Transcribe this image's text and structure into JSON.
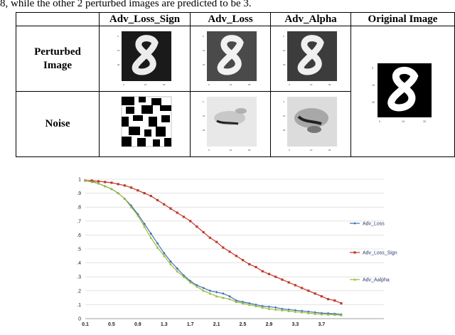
{
  "caption_fragment": "8, while the other 2 perturbed images are predicted to be 3.",
  "table": {
    "headers": [
      "",
      "Adv_Loss_Sign",
      "Adv_Loss",
      "Adv_Alpha",
      "Original Image"
    ],
    "rows": [
      {
        "label_line1": "Perturbed",
        "label_line2": "Image"
      },
      {
        "label_line1": "Noise",
        "label_line2": ""
      }
    ]
  },
  "chart_data": {
    "type": "line",
    "x_ticks": [
      "0.1",
      "0.5",
      "0.9",
      "1.3",
      "1.7",
      "2.1",
      "2.5",
      "2.9",
      "3.3",
      "3.7"
    ],
    "y_ticks": [
      "0",
      "0.1",
      "0.2",
      "0.3",
      "0.4",
      "0.5",
      "0.6",
      "0.7",
      "0.8",
      "0.9",
      "1"
    ],
    "xlim": [
      0.1,
      4.0
    ],
    "ylim": [
      0,
      1
    ],
    "grid": "horizontal",
    "legend_position": "right",
    "series": [
      {
        "name": "Adv_Loss",
        "color": "#3b6fb6",
        "marker": "diamond",
        "x": [
          0.1,
          0.2,
          0.3,
          0.4,
          0.5,
          0.6,
          0.7,
          0.8,
          0.9,
          1.0,
          1.1,
          1.2,
          1.3,
          1.4,
          1.5,
          1.6,
          1.7,
          1.8,
          1.9,
          2.0,
          2.1,
          2.2,
          2.3,
          2.4,
          2.5,
          2.6,
          2.7,
          2.8,
          2.9,
          3.0,
          3.1,
          3.2,
          3.3,
          3.4,
          3.5,
          3.6,
          3.7,
          3.8,
          3.9,
          4.0
        ],
        "values": [
          0.99,
          0.985,
          0.97,
          0.95,
          0.93,
          0.9,
          0.86,
          0.81,
          0.75,
          0.68,
          0.61,
          0.54,
          0.47,
          0.41,
          0.36,
          0.31,
          0.27,
          0.24,
          0.22,
          0.2,
          0.19,
          0.18,
          0.16,
          0.13,
          0.12,
          0.11,
          0.1,
          0.09,
          0.085,
          0.08,
          0.07,
          0.065,
          0.06,
          0.055,
          0.05,
          0.045,
          0.04,
          0.038,
          0.035,
          0.03
        ]
      },
      {
        "name": "Adv_Loss_Sign",
        "color": "#c0392b",
        "marker": "square",
        "x": [
          0.1,
          0.2,
          0.3,
          0.4,
          0.5,
          0.6,
          0.7,
          0.8,
          0.9,
          1.0,
          1.1,
          1.2,
          1.3,
          1.4,
          1.5,
          1.6,
          1.7,
          1.8,
          1.9,
          2.0,
          2.1,
          2.2,
          2.3,
          2.4,
          2.5,
          2.6,
          2.7,
          2.8,
          2.9,
          3.0,
          3.1,
          3.2,
          3.3,
          3.4,
          3.5,
          3.6,
          3.7,
          3.8,
          3.9,
          4.0
        ],
        "values": [
          0.99,
          0.99,
          0.985,
          0.98,
          0.975,
          0.965,
          0.955,
          0.94,
          0.92,
          0.9,
          0.88,
          0.85,
          0.82,
          0.79,
          0.76,
          0.73,
          0.7,
          0.66,
          0.62,
          0.58,
          0.55,
          0.51,
          0.48,
          0.45,
          0.42,
          0.39,
          0.37,
          0.34,
          0.32,
          0.3,
          0.28,
          0.26,
          0.24,
          0.22,
          0.2,
          0.18,
          0.16,
          0.14,
          0.13,
          0.11
        ]
      },
      {
        "name": "Adv_Aalpha",
        "color": "#9bbb3b",
        "marker": "triangle",
        "x": [
          0.1,
          0.2,
          0.3,
          0.4,
          0.5,
          0.6,
          0.7,
          0.8,
          0.9,
          1.0,
          1.1,
          1.2,
          1.3,
          1.4,
          1.5,
          1.6,
          1.7,
          1.8,
          1.9,
          2.0,
          2.1,
          2.2,
          2.3,
          2.4,
          2.5,
          2.6,
          2.7,
          2.8,
          2.9,
          3.0,
          3.1,
          3.2,
          3.3,
          3.4,
          3.5,
          3.6,
          3.7,
          3.8,
          3.9,
          4.0
        ],
        "values": [
          0.99,
          0.98,
          0.97,
          0.95,
          0.93,
          0.9,
          0.86,
          0.8,
          0.74,
          0.66,
          0.58,
          0.51,
          0.45,
          0.39,
          0.34,
          0.3,
          0.26,
          0.23,
          0.2,
          0.18,
          0.16,
          0.15,
          0.14,
          0.12,
          0.11,
          0.1,
          0.09,
          0.08,
          0.07,
          0.065,
          0.06,
          0.055,
          0.05,
          0.045,
          0.04,
          0.035,
          0.032,
          0.03,
          0.028,
          0.025
        ]
      }
    ]
  }
}
